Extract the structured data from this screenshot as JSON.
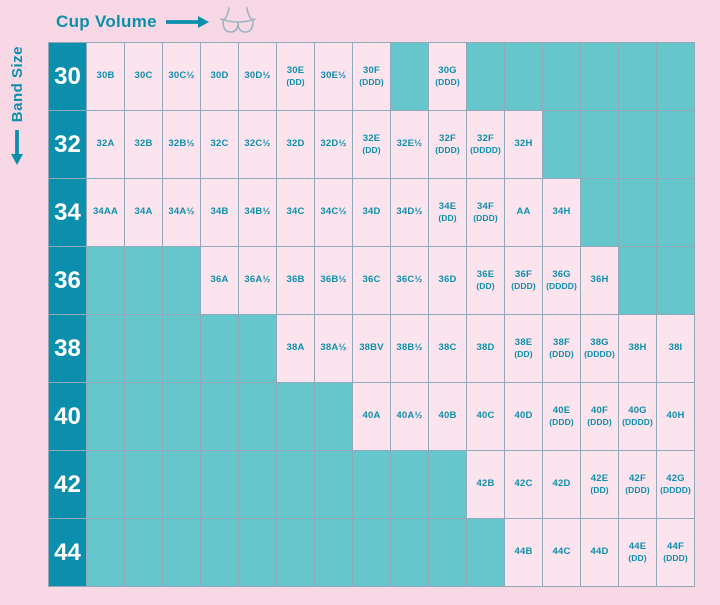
{
  "labels": {
    "cup_volume": "Cup Volume",
    "band_size": "Band Size"
  },
  "colors": {
    "background_pink": "#F8D8E4",
    "cell_pink": "#FBE4ED",
    "empty_teal": "#65C6CC",
    "dark_teal": "#0C8FAD",
    "grid_border": "#92A9BA",
    "band_number_text": "#FFFFFF"
  },
  "icons": {
    "arrow_right": "arrow-right-icon",
    "arrow_down": "arrow-down-icon",
    "bra": "bra-icon"
  },
  "chart_data": {
    "type": "table",
    "title": "Bra size chart: band size vs cup volume",
    "col_axis_label": "Cup Volume",
    "row_axis_label": "Band Size",
    "bands": [
      "30",
      "32",
      "34",
      "36",
      "38",
      "40",
      "42",
      "44"
    ],
    "rows": [
      {
        "band": "30",
        "cells": [
          "30B",
          "30C",
          "30C½",
          "30D",
          "30D½",
          "30E\n(DD)",
          "30E½",
          "30F\n(DDD)",
          null,
          "30G\n(DDD)",
          null,
          null,
          null,
          null,
          null,
          null
        ]
      },
      {
        "band": "32",
        "cells": [
          "32A",
          "32B",
          "32B½",
          "32C",
          "32C½",
          "32D",
          "32D½",
          "32E\n(DD)",
          "32E½",
          "32F\n(DDD)",
          "32F\n(DDDD)",
          "32H",
          null,
          null,
          null,
          null
        ]
      },
      {
        "band": "34",
        "cells": [
          "34AA",
          "34A",
          "34A½",
          "34B",
          "34B½",
          "34C",
          "34C½",
          "34D",
          "34D½",
          "34E\n(DD)",
          "34F\n(DDD)",
          "AA",
          "34H",
          null,
          null,
          null
        ]
      },
      {
        "band": "36",
        "cells": [
          null,
          null,
          null,
          "36A",
          "36A½",
          "36B",
          "36B½",
          "36C",
          "36C½",
          "36D",
          "36E\n(DD)",
          "36F\n(DDD)",
          "36G\n(DDDD)",
          "36H",
          null,
          null
        ]
      },
      {
        "band": "38",
        "cells": [
          null,
          null,
          null,
          null,
          null,
          "38A",
          "38A½",
          "38BV",
          "38B½",
          "38C",
          "38D",
          "38E\n(DD)",
          "38F\n(DDD)",
          "38G\n(DDDD)",
          "38H",
          "38I"
        ]
      },
      {
        "band": "40",
        "cells": [
          null,
          null,
          null,
          null,
          null,
          null,
          null,
          "40A",
          "40A½",
          "40B",
          "40C",
          "40D",
          "40E\n(DDD)",
          "40F\n(DDD)",
          "40G\n(DDDD)",
          "40H"
        ]
      },
      {
        "band": "42",
        "cells": [
          null,
          null,
          null,
          null,
          null,
          null,
          null,
          null,
          null,
          null,
          "42B",
          "42C",
          "42D",
          "42E\n(DD)",
          "42F\n(DDD)",
          "42G\n(DDDD)"
        ]
      },
      {
        "band": "44",
        "cells": [
          null,
          null,
          null,
          null,
          null,
          null,
          null,
          null,
          null,
          null,
          null,
          "44B",
          "44C",
          "44D",
          "44E\n(DD)",
          "44F\n(DDD)"
        ]
      }
    ]
  }
}
